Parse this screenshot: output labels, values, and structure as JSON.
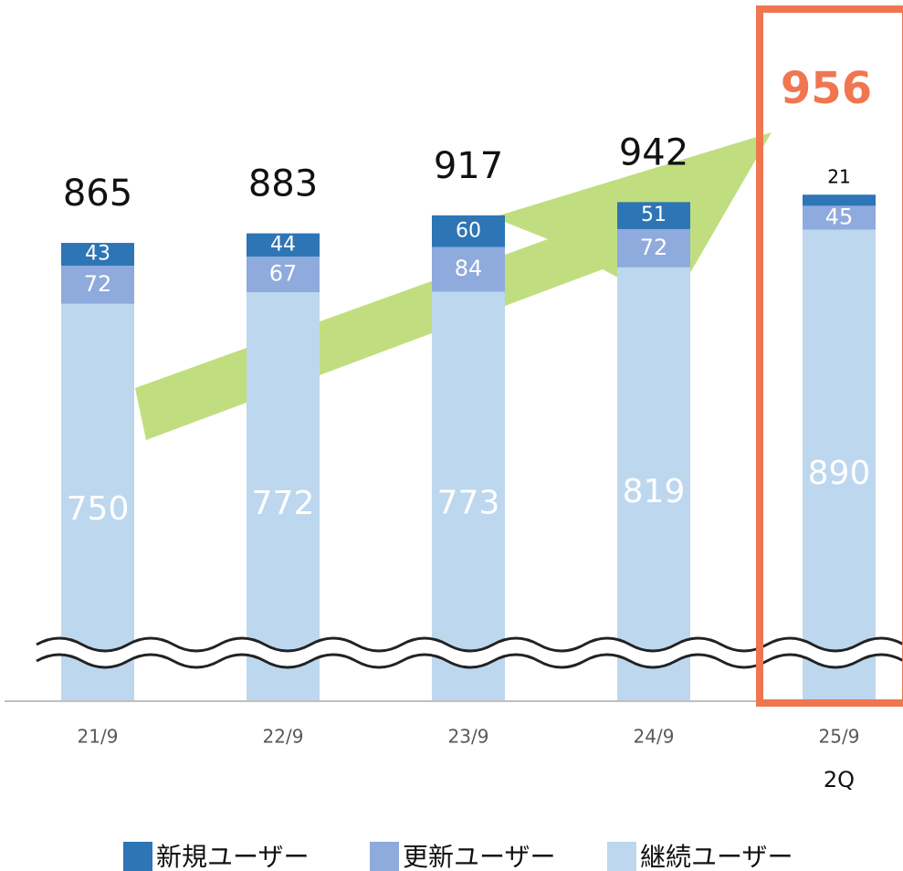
{
  "chart_data": {
    "type": "stacked-bar",
    "categories": [
      "21/9",
      "22/9",
      "23/9",
      "24/9",
      "25/9"
    ],
    "category_sublabels": [
      null,
      null,
      null,
      null,
      "2Q"
    ],
    "totals": [
      865,
      883,
      917,
      942,
      956
    ],
    "series": [
      {
        "name": "継続ユーザー",
        "color": "#bdd7ee",
        "values": [
          750,
          772,
          773,
          819,
          890
        ]
      },
      {
        "name": "更新ユーザー",
        "color": "#8faadc",
        "values": [
          72,
          67,
          84,
          72,
          45
        ]
      },
      {
        "name": "新規ユーザー",
        "color": "#2e75b6",
        "values": [
          43,
          44,
          60,
          51,
          21
        ]
      }
    ],
    "ylim": [
      0,
      1320
    ],
    "legend": "bottom"
  }
}
